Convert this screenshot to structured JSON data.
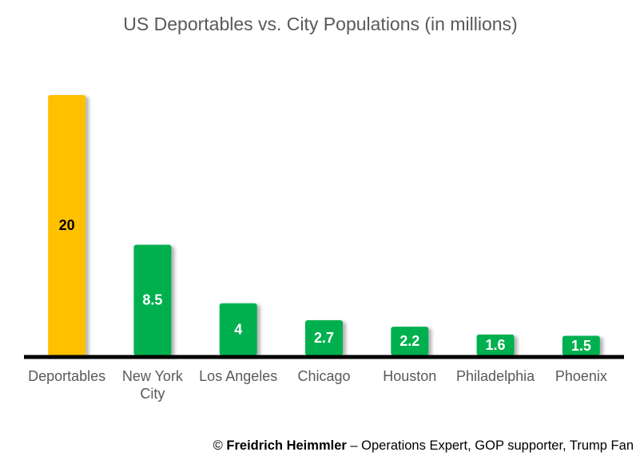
{
  "chart_data": {
    "type": "bar",
    "title": "US Deportables vs. City Populations (in millions)",
    "xlabel": "",
    "ylabel": "",
    "categories": [
      "Deportables",
      "New York City",
      "Los Angeles",
      "Chicago",
      "Houston",
      "Philadelphia",
      "Phoenix"
    ],
    "category_lines": [
      [
        "Deportables"
      ],
      [
        "New York",
        "City"
      ],
      [
        "Los Angeles"
      ],
      [
        "Chicago"
      ],
      [
        "Houston"
      ],
      [
        "Philadelphia"
      ],
      [
        "Phoenix"
      ]
    ],
    "values": [
      20,
      8.5,
      4,
      2.7,
      2.2,
      1.6,
      1.5
    ],
    "value_labels": [
      "20",
      "8.5",
      "4",
      "2.7",
      "2.2",
      "1.6",
      "1.5"
    ],
    "ylim": [
      0,
      20
    ],
    "grid": false,
    "legend": "none",
    "colors": {
      "highlight": "#FFC000",
      "default": "#00B050",
      "highlight_label": "#000000",
      "default_label": "#FFFFFF",
      "axis": "#000000"
    },
    "highlight_index": 0
  },
  "credit": {
    "symbol": "©",
    "author": "Freidrich Heimmler",
    "rest": " – Operations Expert, GOP supporter, Trump Fan"
  }
}
